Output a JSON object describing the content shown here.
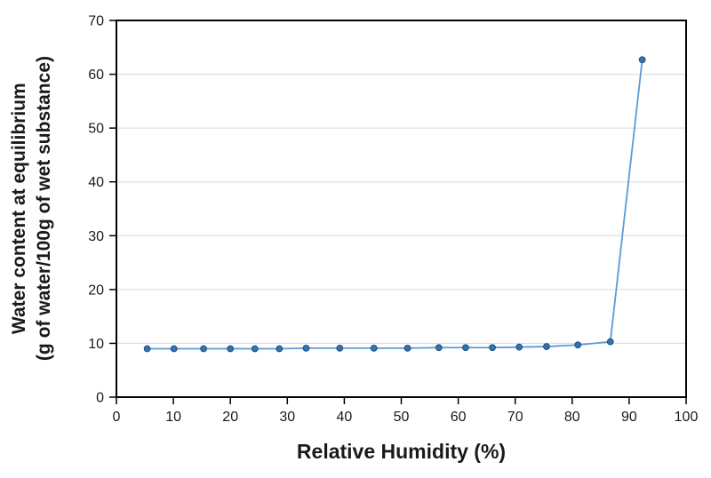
{
  "chart_data": {
    "type": "line",
    "xlabel": "Relative Humidity (%)",
    "ylabel_line1": "Water content at equilibrium",
    "ylabel_line2": "(g of water/100g of wet substance)",
    "xlim": [
      0,
      100
    ],
    "ylim": [
      0,
      70
    ],
    "x_ticks": [
      0,
      10,
      20,
      30,
      40,
      50,
      60,
      70,
      80,
      90,
      100
    ],
    "y_ticks": [
      0,
      10,
      20,
      30,
      40,
      50,
      60,
      70
    ],
    "grid": "horizontal-only",
    "legend": "none",
    "series": [
      {
        "x": [
          5.4,
          10.1,
          15.3,
          20.0,
          24.3,
          28.6,
          33.3,
          39.2,
          45.2,
          51.1,
          56.6,
          61.3,
          66.0,
          70.7,
          75.5,
          81.0,
          86.7,
          92.3
        ],
        "y": [
          9.0,
          9.0,
          9.0,
          9.0,
          9.0,
          9.0,
          9.1,
          9.1,
          9.1,
          9.1,
          9.2,
          9.2,
          9.2,
          9.3,
          9.4,
          9.7,
          10.3,
          62.7
        ],
        "line_color": "#5B9BD5",
        "marker_color": "#2E75B6",
        "marker_edge_color": "#1F4E79",
        "marker_shape": "circle"
      }
    ],
    "colors": {
      "gridline": "#D9D9D9",
      "axis": "#000000",
      "tick_label": "#1a1a1a",
      "background": "#ffffff"
    }
  }
}
